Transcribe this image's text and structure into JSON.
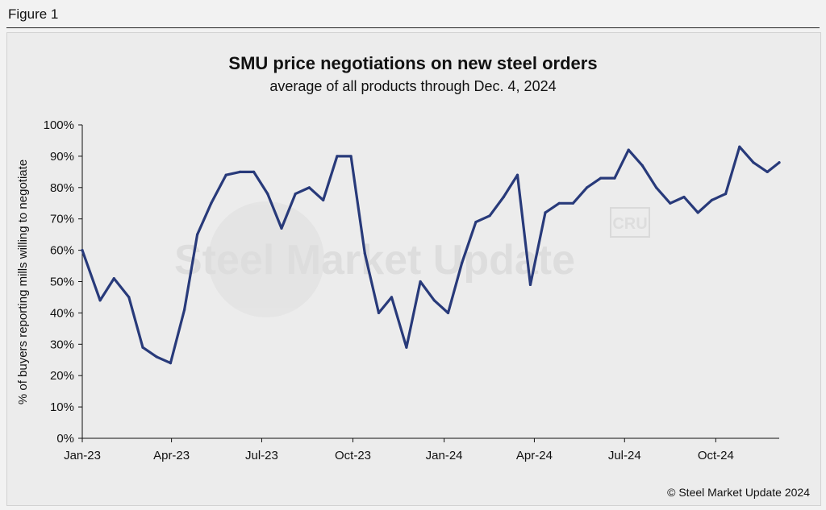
{
  "figure_label": "Figure 1",
  "copyright": "© Steel Market Update 2024",
  "watermark": {
    "brand": "Steel Market Update",
    "logo": "CRU"
  },
  "colors": {
    "line": "#283a7a",
    "background": "#ececec",
    "axis": "#111111"
  },
  "chart_data": {
    "type": "line",
    "title": "SMU price negotiations on new steel orders",
    "subtitle": "average of all products through Dec. 4, 2024",
    "xlabel": "",
    "ylabel": "% of buyers reporting mills willing to negotiate",
    "ylim": [
      0,
      100
    ],
    "y_ticks": [
      "0%",
      "10%",
      "20%",
      "30%",
      "40%",
      "50%",
      "60%",
      "70%",
      "80%",
      "90%",
      "100%"
    ],
    "x_range": [
      "2023-01-01",
      "2024-12-04"
    ],
    "x_ticks": [
      {
        "label": "Jan-23",
        "date": "2023-01-01"
      },
      {
        "label": "Apr-23",
        "date": "2023-04-01"
      },
      {
        "label": "Jul-23",
        "date": "2023-07-01"
      },
      {
        "label": "Oct-23",
        "date": "2023-10-01"
      },
      {
        "label": "Jan-24",
        "date": "2024-01-01"
      },
      {
        "label": "Apr-24",
        "date": "2024-04-01"
      },
      {
        "label": "Jul-24",
        "date": "2024-07-01"
      },
      {
        "label": "Oct-24",
        "date": "2024-10-01"
      }
    ],
    "grid": false,
    "legend": "none",
    "series": [
      {
        "points": [
          [
            "2023-01-01",
            60
          ],
          [
            "2023-01-19",
            44
          ],
          [
            "2023-02-02",
            51
          ],
          [
            "2023-02-17",
            45
          ],
          [
            "2023-03-03",
            29
          ],
          [
            "2023-03-17",
            26
          ],
          [
            "2023-03-31",
            24
          ],
          [
            "2023-04-14",
            41
          ],
          [
            "2023-04-27",
            65
          ],
          [
            "2023-05-11",
            75
          ],
          [
            "2023-05-26",
            84
          ],
          [
            "2023-06-09",
            85
          ],
          [
            "2023-06-23",
            85
          ],
          [
            "2023-07-07",
            78
          ],
          [
            "2023-07-21",
            67
          ],
          [
            "2023-08-04",
            78
          ],
          [
            "2023-08-18",
            80
          ],
          [
            "2023-09-01",
            76
          ],
          [
            "2023-09-15",
            90
          ],
          [
            "2023-09-29",
            90
          ],
          [
            "2023-10-13",
            59
          ],
          [
            "2023-10-27",
            40
          ],
          [
            "2023-11-09",
            45
          ],
          [
            "2023-11-24",
            29
          ],
          [
            "2023-12-08",
            50
          ],
          [
            "2023-12-22",
            44
          ],
          [
            "2024-01-05",
            40
          ],
          [
            "2024-01-19",
            56
          ],
          [
            "2024-02-02",
            69
          ],
          [
            "2024-02-16",
            71
          ],
          [
            "2024-03-01",
            77
          ],
          [
            "2024-03-15",
            84
          ],
          [
            "2024-03-28",
            49
          ],
          [
            "2024-04-12",
            72
          ],
          [
            "2024-04-26",
            75
          ],
          [
            "2024-05-10",
            75
          ],
          [
            "2024-05-24",
            80
          ],
          [
            "2024-06-07",
            83
          ],
          [
            "2024-06-21",
            83
          ],
          [
            "2024-07-05",
            92
          ],
          [
            "2024-07-19",
            87
          ],
          [
            "2024-08-02",
            80
          ],
          [
            "2024-08-16",
            75
          ],
          [
            "2024-08-30",
            77
          ],
          [
            "2024-09-13",
            72
          ],
          [
            "2024-09-27",
            76
          ],
          [
            "2024-10-11",
            78
          ],
          [
            "2024-10-25",
            93
          ],
          [
            "2024-11-08",
            88
          ],
          [
            "2024-11-22",
            85
          ],
          [
            "2024-12-04",
            88
          ]
        ]
      }
    ]
  }
}
